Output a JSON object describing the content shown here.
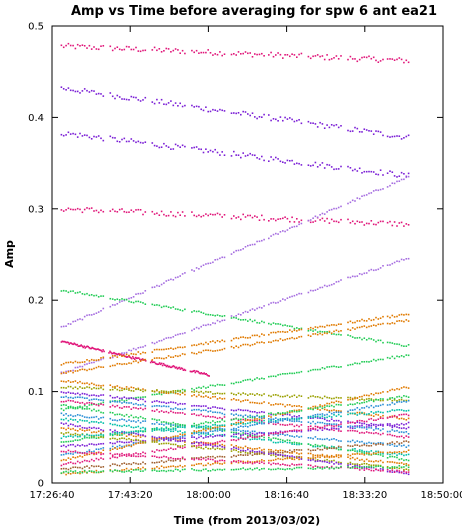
{
  "chart_data": {
    "type": "scatter",
    "title": "Amp vs Time before averaging for spw 6 ant ea21",
    "xlabel": "Time (from 2013/03/02)",
    "ylabel": "Amp",
    "xlim": [
      "17:26:40",
      "18:50:00"
    ],
    "ylim": [
      0,
      0.5
    ],
    "x_ticks": [
      "17:26:40",
      "17:43:20",
      "18:00:00",
      "18:16:40",
      "18:33:20",
      "18:50:00"
    ],
    "y_ticks": [
      "0",
      "0.1",
      "0.2",
      "0.3",
      "0.4",
      "0.5"
    ],
    "grid": false,
    "legend": "none",
    "scan_gaps": [
      "17:38:10",
      "17:47:00",
      "17:55:30",
      "18:04:00",
      "18:12:10",
      "18:20:30",
      "18:29:00",
      "18:37:30"
    ],
    "series": [
      {
        "color": "#e0177a",
        "x": [
          "17:28:30",
          "18:42:30"
        ],
        "y": [
          0.478,
          0.462
        ]
      },
      {
        "color": "#7b1fd6",
        "x": [
          "17:28:30",
          "18:42:30"
        ],
        "y": [
          0.432,
          0.378
        ]
      },
      {
        "color": "#7b1fd6",
        "x": [
          "17:28:30",
          "18:42:30"
        ],
        "y": [
          0.383,
          0.336
        ]
      },
      {
        "color": "#e0177a",
        "x": [
          "17:28:30",
          "18:42:30"
        ],
        "y": [
          0.3,
          0.283
        ]
      },
      {
        "color": "#a66ee0",
        "x": [
          "17:28:30",
          "18:42:30"
        ],
        "y": [
          0.17,
          0.335
        ]
      },
      {
        "color": "#a66ee0",
        "x": [
          "17:28:30",
          "18:42:30"
        ],
        "y": [
          0.12,
          0.246
        ]
      },
      {
        "color": "#22cc55",
        "x": [
          "17:28:30",
          "18:42:30"
        ],
        "y": [
          0.211,
          0.15
        ]
      },
      {
        "color": "#e0177a",
        "x": [
          "17:28:30",
          "18:00:00"
        ],
        "y": [
          0.155,
          0.118
        ]
      },
      {
        "color": "#e07a00",
        "x": [
          "17:28:30",
          "18:42:30"
        ],
        "y": [
          0.12,
          0.178
        ]
      },
      {
        "color": "#e07a00",
        "x": [
          "17:28:30",
          "18:42:30"
        ],
        "y": [
          0.13,
          0.185
        ]
      },
      {
        "color": "#22cc55",
        "x": [
          "17:28:30",
          "18:42:30"
        ],
        "y": [
          0.08,
          0.14
        ]
      },
      {
        "color": "#e07a00",
        "x": [
          "17:28:30",
          "18:42:30"
        ],
        "y": [
          0.112,
          0.07
        ]
      },
      {
        "color": "#9aa000",
        "x": [
          "17:28:30",
          "18:42:30"
        ],
        "y": [
          0.105,
          0.09
        ]
      },
      {
        "color": "#7b1fd6",
        "x": [
          "17:28:30",
          "18:42:30"
        ],
        "y": [
          0.1,
          0.06
        ]
      },
      {
        "color": "#2a8fd6",
        "x": [
          "17:28:30",
          "18:42:30"
        ],
        "y": [
          0.075,
          0.04
        ]
      },
      {
        "color": "#00bfa8",
        "x": [
          "17:28:30",
          "18:42:30"
        ],
        "y": [
          0.07,
          0.03
        ]
      },
      {
        "color": "#e0177a",
        "x": [
          "17:28:30",
          "18:42:30"
        ],
        "y": [
          0.09,
          0.05
        ]
      },
      {
        "color": "#e07a00",
        "x": [
          "17:28:30",
          "18:42:30"
        ],
        "y": [
          0.06,
          0.02
        ]
      },
      {
        "color": "#22cc55",
        "x": [
          "17:28:30",
          "18:42:30"
        ],
        "y": [
          0.085,
          0.025
        ]
      },
      {
        "color": "#7b1fd6",
        "x": [
          "17:28:30",
          "18:42:30"
        ],
        "y": [
          0.04,
          0.065
        ]
      },
      {
        "color": "#2a8fd6",
        "x": [
          "17:28:30",
          "18:42:30"
        ],
        "y": [
          0.03,
          0.09
        ]
      },
      {
        "color": "#e07a00",
        "x": [
          "17:28:30",
          "18:42:30"
        ],
        "y": [
          0.025,
          0.105
        ]
      },
      {
        "color": "#22cc55",
        "x": [
          "17:28:30",
          "18:42:30"
        ],
        "y": [
          0.045,
          0.095
        ]
      },
      {
        "color": "#e0177a",
        "x": [
          "17:28:30",
          "18:42:30"
        ],
        "y": [
          0.02,
          0.075
        ]
      },
      {
        "color": "#9aa000",
        "x": [
          "17:28:30",
          "18:42:30"
        ],
        "y": [
          0.055,
          0.015
        ]
      },
      {
        "color": "#a06030",
        "x": [
          "17:28:30",
          "18:42:30"
        ],
        "y": [
          0.015,
          0.045
        ]
      },
      {
        "color": "#7b1fd6",
        "x": [
          "17:28:30",
          "18:42:30"
        ],
        "y": [
          0.065,
          0.01
        ]
      },
      {
        "color": "#e07a00",
        "x": [
          "17:28:30",
          "18:42:30"
        ],
        "y": [
          0.01,
          0.035
        ]
      },
      {
        "color": "#00bfa8",
        "x": [
          "17:28:30",
          "18:42:30"
        ],
        "y": [
          0.05,
          0.08
        ]
      },
      {
        "color": "#2a8fd6",
        "x": [
          "17:28:30",
          "18:42:30"
        ],
        "y": [
          0.095,
          0.055
        ]
      },
      {
        "color": "#e0177a",
        "x": [
          "17:28:30",
          "18:42:30"
        ],
        "y": [
          0.035,
          0.012
        ]
      },
      {
        "color": "#22cc55",
        "x": [
          "17:28:30",
          "18:42:30"
        ],
        "y": [
          0.012,
          0.018
        ]
      }
    ]
  }
}
